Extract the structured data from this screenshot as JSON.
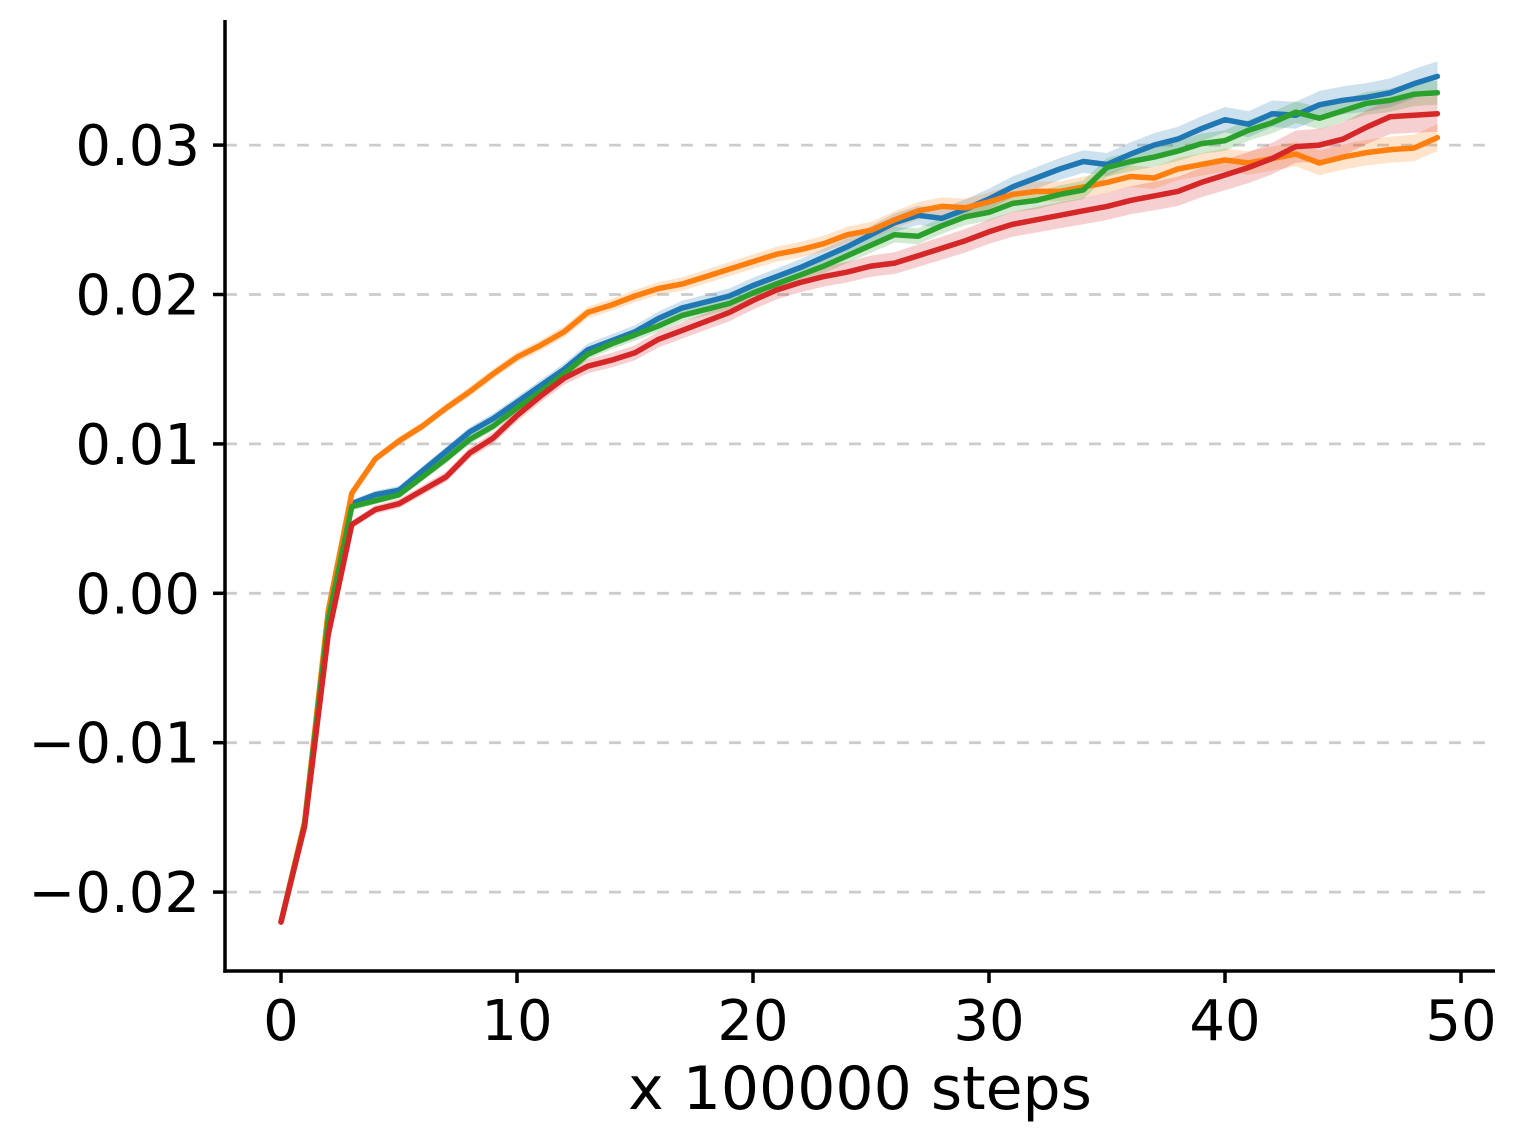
{
  "figure": {
    "background": "#ffffff",
    "text_color": "#000000",
    "spine_color": "#000000",
    "grid_color": "#cccccc"
  },
  "chart_data": {
    "type": "line",
    "title": "",
    "xlabel": "x 100000 steps",
    "ylabel": "",
    "grid": "horizontal dashed",
    "legend": "none",
    "xlim": [
      -2.4,
      51.4
    ],
    "ylim": [
      -0.0253,
      0.0384
    ],
    "x_ticks": {
      "values": [
        0,
        10,
        20,
        30,
        40,
        50
      ],
      "labels": [
        "0",
        "10",
        "20",
        "30",
        "40",
        "50"
      ]
    },
    "y_ticks": {
      "values": [
        -0.02,
        -0.01,
        0.0,
        0.01,
        0.02,
        0.03
      ],
      "labels": [
        "−0.02",
        "−0.01",
        "0.00",
        "0.01",
        "0.02",
        "0.03"
      ]
    },
    "x": [
      0,
      1,
      2,
      3,
      4,
      5,
      6,
      7,
      8,
      9,
      10,
      11,
      12,
      13,
      14,
      15,
      16,
      17,
      18,
      19,
      20,
      21,
      22,
      23,
      24,
      25,
      26,
      27,
      28,
      29,
      30,
      31,
      32,
      33,
      34,
      35,
      36,
      37,
      38,
      39,
      40,
      41,
      42,
      43,
      44,
      45,
      46,
      47,
      48,
      49
    ],
    "series": [
      {
        "name": "blue",
        "color": "#1f77b4",
        "band_alpha": 0.22,
        "band_halfwidth_start": 0.0002,
        "band_halfwidth_end": 0.001,
        "values": [
          -0.022,
          -0.0154,
          -0.0016,
          0.006,
          0.0066,
          0.0069,
          0.0082,
          0.0095,
          0.0108,
          0.0117,
          0.0128,
          0.0139,
          0.015,
          0.0163,
          0.0169,
          0.0175,
          0.0184,
          0.0191,
          0.0195,
          0.0199,
          0.0206,
          0.0212,
          0.0218,
          0.0225,
          0.0232,
          0.024,
          0.0248,
          0.0253,
          0.0251,
          0.0257,
          0.0264,
          0.0272,
          0.0278,
          0.0284,
          0.0289,
          0.0287,
          0.0294,
          0.03,
          0.0304,
          0.0311,
          0.0317,
          0.0314,
          0.0321,
          0.032,
          0.0327,
          0.033,
          0.0332,
          0.0335,
          0.0341,
          0.0346
        ]
      },
      {
        "name": "orange",
        "color": "#ff7f0e",
        "band_alpha": 0.22,
        "band_halfwidth_start": 0.0002,
        "band_halfwidth_end": 0.0009,
        "values": [
          -0.022,
          -0.0153,
          -0.0012,
          0.0067,
          0.009,
          0.0102,
          0.0112,
          0.0124,
          0.0135,
          0.0147,
          0.0158,
          0.0166,
          0.0175,
          0.0188,
          0.0193,
          0.0199,
          0.0204,
          0.0207,
          0.0212,
          0.0217,
          0.0222,
          0.0227,
          0.023,
          0.0234,
          0.024,
          0.0243,
          0.025,
          0.0256,
          0.0259,
          0.0258,
          0.0262,
          0.0267,
          0.0269,
          0.0269,
          0.0272,
          0.0275,
          0.0279,
          0.0278,
          0.0284,
          0.0287,
          0.029,
          0.0288,
          0.0291,
          0.0294,
          0.0288,
          0.0292,
          0.0295,
          0.0297,
          0.0298,
          0.0305
        ]
      },
      {
        "name": "green",
        "color": "#2ca02c",
        "band_alpha": 0.22,
        "band_halfwidth_start": 0.0002,
        "band_halfwidth_end": 0.0008,
        "values": [
          -0.022,
          -0.0155,
          -0.0018,
          0.0058,
          0.0062,
          0.0066,
          0.0078,
          0.009,
          0.0103,
          0.0112,
          0.0124,
          0.0135,
          0.0147,
          0.016,
          0.0167,
          0.0173,
          0.0179,
          0.0186,
          0.019,
          0.0194,
          0.0201,
          0.0207,
          0.0213,
          0.0219,
          0.0226,
          0.0233,
          0.024,
          0.0239,
          0.0246,
          0.0252,
          0.0255,
          0.0261,
          0.0263,
          0.0267,
          0.027,
          0.0285,
          0.0289,
          0.0292,
          0.0296,
          0.0301,
          0.0303,
          0.031,
          0.0315,
          0.0322,
          0.0318,
          0.0323,
          0.0328,
          0.033,
          0.0334,
          0.0335
        ]
      },
      {
        "name": "red",
        "color": "#d62728",
        "band_alpha": 0.22,
        "band_halfwidth_start": 0.0002,
        "band_halfwidth_end": 0.0012,
        "values": [
          -0.022,
          -0.0156,
          -0.0028,
          0.0046,
          0.0056,
          0.006,
          0.0069,
          0.0078,
          0.0094,
          0.0104,
          0.0119,
          0.0132,
          0.0144,
          0.0152,
          0.0156,
          0.0161,
          0.017,
          0.0176,
          0.0182,
          0.0188,
          0.0196,
          0.0203,
          0.0208,
          0.0212,
          0.0215,
          0.0219,
          0.0221,
          0.0226,
          0.0231,
          0.0236,
          0.0242,
          0.0247,
          0.025,
          0.0253,
          0.0256,
          0.0259,
          0.0263,
          0.0266,
          0.0269,
          0.0275,
          0.028,
          0.0285,
          0.0291,
          0.0299,
          0.03,
          0.0304,
          0.0312,
          0.0319,
          0.032,
          0.0321
        ]
      }
    ]
  }
}
